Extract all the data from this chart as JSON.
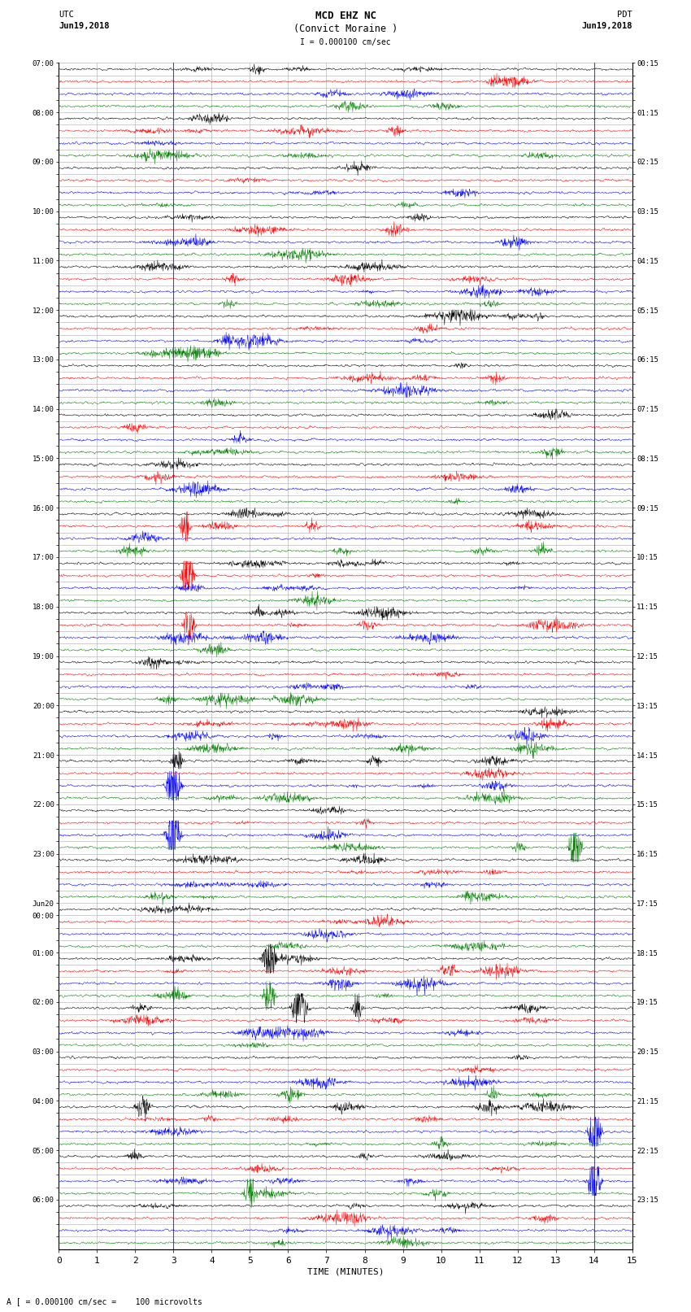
{
  "title_line1": "MCD EHZ NC",
  "title_line2": "(Convict Moraine )",
  "scale_text": "I = 0.000100 cm/sec",
  "left_label": "UTC",
  "right_label": "PDT",
  "left_date": "Jun19,2018",
  "right_date": "Jun19,2018",
  "bottom_xlabel": "TIME (MINUTES)",
  "bottom_note": "A [ = 0.000100 cm/sec =    100 microvolts",
  "x_min": 0,
  "x_max": 15,
  "x_ticks": [
    0,
    1,
    2,
    3,
    4,
    5,
    6,
    7,
    8,
    9,
    10,
    11,
    12,
    13,
    14,
    15
  ],
  "left_times": [
    "07:00",
    "",
    "",
    "",
    "08:00",
    "",
    "",
    "",
    "09:00",
    "",
    "",
    "",
    "10:00",
    "",
    "",
    "",
    "11:00",
    "",
    "",
    "",
    "12:00",
    "",
    "",
    "",
    "13:00",
    "",
    "",
    "",
    "14:00",
    "",
    "",
    "",
    "15:00",
    "",
    "",
    "",
    "16:00",
    "",
    "",
    "",
    "17:00",
    "",
    "",
    "",
    "18:00",
    "",
    "",
    "",
    "19:00",
    "",
    "",
    "",
    "20:00",
    "",
    "",
    "",
    "21:00",
    "",
    "",
    "",
    "22:00",
    "",
    "",
    "",
    "23:00",
    "",
    "",
    "",
    "Jun20",
    "00:00",
    "",
    "",
    "01:00",
    "",
    "",
    "",
    "02:00",
    "",
    "",
    "",
    "03:00",
    "",
    "",
    "",
    "04:00",
    "",
    "",
    "",
    "05:00",
    "",
    "",
    "",
    "06:00",
    "",
    "",
    ""
  ],
  "right_times": [
    "00:15",
    "",
    "",
    "",
    "01:15",
    "",
    "",
    "",
    "02:15",
    "",
    "",
    "",
    "03:15",
    "",
    "",
    "",
    "04:15",
    "",
    "",
    "",
    "05:15",
    "",
    "",
    "",
    "06:15",
    "",
    "",
    "",
    "07:15",
    "",
    "",
    "",
    "08:15",
    "",
    "",
    "",
    "09:15",
    "",
    "",
    "",
    "10:15",
    "",
    "",
    "",
    "11:15",
    "",
    "",
    "",
    "12:15",
    "",
    "",
    "",
    "13:15",
    "",
    "",
    "",
    "14:15",
    "",
    "",
    "",
    "15:15",
    "",
    "",
    "",
    "16:15",
    "",
    "",
    "",
    "17:15",
    "",
    "",
    "",
    "18:15",
    "",
    "",
    "",
    "19:15",
    "",
    "",
    "",
    "20:15",
    "",
    "",
    "",
    "21:15",
    "",
    "",
    "",
    "22:15",
    "",
    "",
    "",
    "23:15",
    "",
    "",
    ""
  ],
  "track_colors": [
    "black",
    "red",
    "blue",
    "green"
  ],
  "n_rows": 96,
  "bg_color": "white",
  "grid_color": "#aaaaaa",
  "figwidth": 8.5,
  "figheight": 16.13,
  "dpi": 100,
  "vline_x1": 3.0,
  "vline_x2": 14.0,
  "vline_color": "blue",
  "vline_alpha": 0.7
}
